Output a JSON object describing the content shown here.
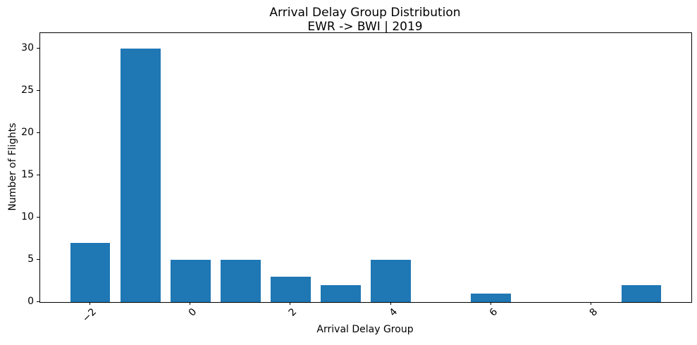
{
  "figure": {
    "title_line1": "Arrival Delay Group Distribution",
    "title_line2": "EWR -> BWI | 2019",
    "xlabel": "Arrival Delay Group",
    "ylabel": "Number of Flights"
  },
  "chart_data": {
    "type": "bar",
    "title": "Arrival Delay Group Distribution",
    "subtitle": "EWR -> BWI | 2019",
    "xlabel": "Arrival Delay Group",
    "ylabel": "Number of Flights",
    "categories": [
      -2,
      -1,
      0,
      1,
      2,
      3,
      4,
      5,
      6,
      7,
      8,
      9
    ],
    "values": [
      7,
      30,
      5,
      5,
      3,
      2,
      5,
      0,
      1,
      0,
      0,
      2
    ],
    "bar_color": "#1f77b4",
    "bar_width": 0.8,
    "xlim": [
      -3,
      10
    ],
    "ylim": [
      0,
      31.8
    ],
    "x_tick_positions": [
      -2,
      0,
      2,
      4,
      6,
      8
    ],
    "x_tick_labels": [
      "−2",
      "0",
      "2",
      "4",
      "6",
      "8"
    ],
    "x_tick_rotation_deg": 45,
    "y_ticks": [
      0,
      5,
      10,
      15,
      20,
      25,
      30
    ],
    "grid": false,
    "legend": "none",
    "background": "#ffffff",
    "axis_color": "#000000"
  }
}
